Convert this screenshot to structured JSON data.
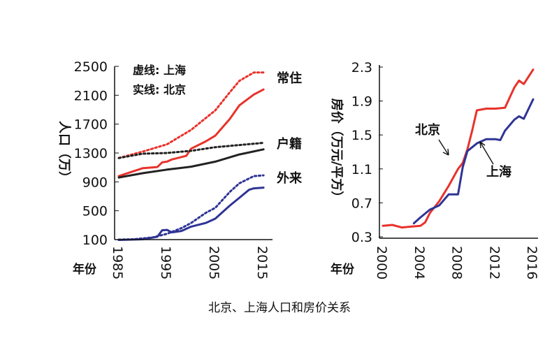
{
  "caption": "北京、上海人口和房价关系",
  "chart_data": [
    {
      "type": "line",
      "ylabel": "人口（万）",
      "xlabel": "年份",
      "xlim": [
        1985,
        2016
      ],
      "ylim": [
        100,
        2500
      ],
      "x_ticks": [
        "1985",
        "1995",
        "2005",
        "2015"
      ],
      "y_ticks": [
        "100",
        "500",
        "900",
        "1300",
        "1700",
        "2100",
        "2500"
      ],
      "legend": {
        "dashed": "虚线: 上海",
        "solid": "实线: 北京"
      },
      "group_labels": {
        "resident": "常住",
        "registered": "户籍",
        "migrant": "外来"
      },
      "series": [
        {
          "group": "resident",
          "city": "上海",
          "style": "dashed",
          "color": "#e8322b",
          "points": [
            [
              1985,
              1230
            ],
            [
              1990,
              1320
            ],
            [
              1995,
              1420
            ],
            [
              2000,
              1620
            ],
            [
              2005,
              1890
            ],
            [
              2008,
              2140
            ],
            [
              2010,
              2300
            ],
            [
              2013,
              2415
            ],
            [
              2015,
              2415
            ]
          ]
        },
        {
          "group": "resident",
          "city": "北京",
          "style": "solid",
          "color": "#e8322b",
          "points": [
            [
              1985,
              980
            ],
            [
              1990,
              1090
            ],
            [
              1993,
              1105
            ],
            [
              1994,
              1170
            ],
            [
              1995,
              1180
            ],
            [
              1996,
              1210
            ],
            [
              1999,
              1260
            ],
            [
              2000,
              1360
            ],
            [
              2003,
              1460
            ],
            [
              2005,
              1540
            ],
            [
              2008,
              1770
            ],
            [
              2010,
              1960
            ],
            [
              2013,
              2110
            ],
            [
              2015,
              2180
            ]
          ]
        },
        {
          "group": "registered",
          "city": "上海",
          "style": "dashed",
          "color": "#222222",
          "points": [
            [
              1985,
              1230
            ],
            [
              1990,
              1290
            ],
            [
              1995,
              1300
            ],
            [
              2000,
              1330
            ],
            [
              2005,
              1380
            ],
            [
              2010,
              1410
            ],
            [
              2015,
              1440
            ]
          ]
        },
        {
          "group": "registered",
          "city": "北京",
          "style": "solid",
          "color": "#222222",
          "points": [
            [
              1985,
              960
            ],
            [
              1990,
              1020
            ],
            [
              1995,
              1070
            ],
            [
              2000,
              1110
            ],
            [
              2005,
              1180
            ],
            [
              2010,
              1280
            ],
            [
              2015,
              1350
            ]
          ]
        },
        {
          "group": "migrant",
          "city": "上海",
          "style": "dashed",
          "color": "#2f3495",
          "points": [
            [
              1985,
              100
            ],
            [
              1988,
              105
            ],
            [
              1992,
              130
            ],
            [
              1995,
              180
            ],
            [
              1998,
              260
            ],
            [
              2000,
              330
            ],
            [
              2003,
              470
            ],
            [
              2005,
              540
            ],
            [
              2008,
              760
            ],
            [
              2010,
              880
            ],
            [
              2013,
              980
            ],
            [
              2015,
              990
            ]
          ]
        },
        {
          "group": "migrant",
          "city": "北京",
          "style": "solid",
          "color": "#2f3495",
          "points": [
            [
              1985,
              95
            ],
            [
              1990,
              105
            ],
            [
              1993,
              140
            ],
            [
              1994,
              230
            ],
            [
              1995,
              235
            ],
            [
              1996,
              200
            ],
            [
              1998,
              220
            ],
            [
              2000,
              280
            ],
            [
              2003,
              330
            ],
            [
              2005,
              390
            ],
            [
              2008,
              570
            ],
            [
              2010,
              680
            ],
            [
              2012,
              790
            ],
            [
              2013,
              810
            ],
            [
              2015,
              820
            ]
          ]
        }
      ]
    },
    {
      "type": "line",
      "ylabel": "房价（万元/平方）",
      "xlabel": "年份",
      "xlim": [
        2000,
        2016
      ],
      "ylim": [
        0.3,
        2.3
      ],
      "x_ticks": [
        "2000",
        "2004",
        "2008",
        "2012",
        "2016"
      ],
      "y_ticks": [
        "0.3",
        "0.7",
        "1.1",
        "1.5",
        "1.9",
        "2.3"
      ],
      "series": [
        {
          "name": "北京",
          "color": "#e8322b",
          "points": [
            [
              2000,
              0.43
            ],
            [
              2001,
              0.44
            ],
            [
              2002,
              0.41
            ],
            [
              2003,
              0.42
            ],
            [
              2004,
              0.43
            ],
            [
              2004.5,
              0.47
            ],
            [
              2005,
              0.58
            ],
            [
              2006,
              0.72
            ],
            [
              2007,
              0.9
            ],
            [
              2008,
              1.1
            ],
            [
              2008.5,
              1.17
            ],
            [
              2009,
              1.33
            ],
            [
              2009.5,
              1.55
            ],
            [
              2010,
              1.79
            ],
            [
              2011,
              1.81
            ],
            [
              2012,
              1.81
            ],
            [
              2013,
              1.82
            ],
            [
              2014,
              2.06
            ],
            [
              2014.5,
              2.14
            ],
            [
              2015,
              2.1
            ],
            [
              2016,
              2.27
            ]
          ]
        },
        {
          "name": "上海",
          "color": "#2f3495",
          "points": [
            [
              2003.3,
              0.46
            ],
            [
              2004,
              0.53
            ],
            [
              2005,
              0.62
            ],
            [
              2006,
              0.67
            ],
            [
              2007,
              0.8
            ],
            [
              2008,
              0.8
            ],
            [
              2008.5,
              1.12
            ],
            [
              2009,
              1.31
            ],
            [
              2010,
              1.4
            ],
            [
              2011,
              1.45
            ],
            [
              2012,
              1.45
            ],
            [
              2012.5,
              1.44
            ],
            [
              2013,
              1.55
            ],
            [
              2014,
              1.68
            ],
            [
              2014.5,
              1.72
            ],
            [
              2015,
              1.69
            ],
            [
              2016,
              1.92
            ]
          ]
        }
      ]
    }
  ]
}
